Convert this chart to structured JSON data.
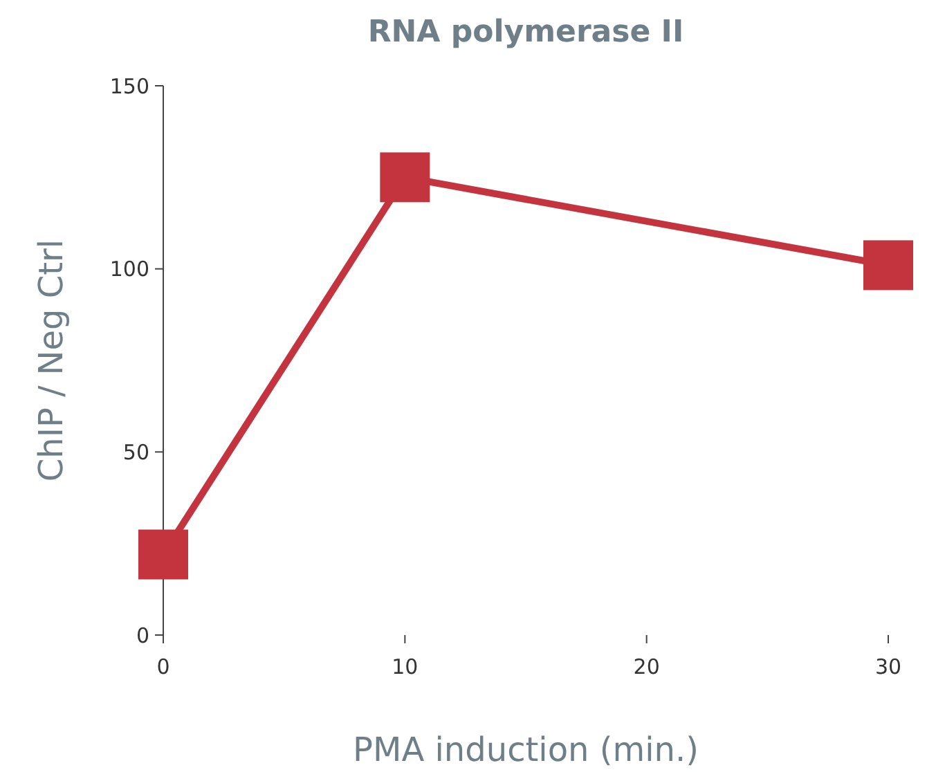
{
  "chart_data": {
    "type": "line",
    "title": "RNA polymerase II",
    "xlabel": "PMA induction (min.)",
    "ylabel": "ChIP / Neg Ctrl",
    "x": [
      0,
      10,
      30
    ],
    "series": [
      {
        "color": "#c4343f",
        "values": [
          22,
          125,
          101
        ]
      }
    ],
    "xlim": [
      0,
      30
    ],
    "xticks": [
      0,
      10,
      20,
      30
    ],
    "ylim": [
      0,
      150
    ],
    "yticks": [
      0,
      50,
      100,
      150
    ],
    "marker": "square",
    "grid": false
  }
}
